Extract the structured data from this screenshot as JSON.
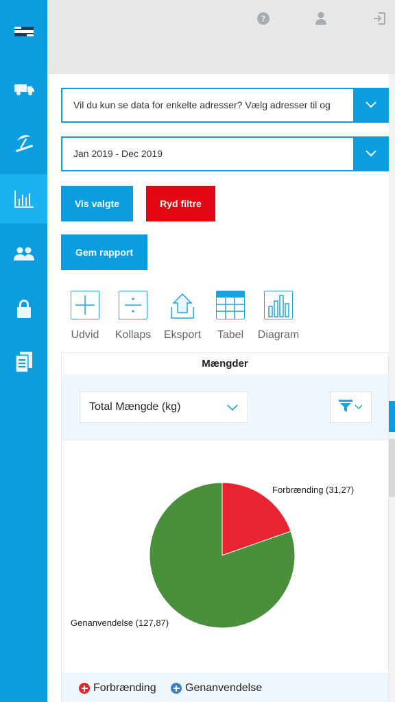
{
  "colors": {
    "sidebar": "#0a9ee0",
    "sidebar_active": "#1cb1f0",
    "primary": "#0a9ee0",
    "danger": "#e30613",
    "pie_forbraending": "#ea2330",
    "pie_genanvendelse": "#4a8f3c",
    "legend_forbraending": "#e1262e",
    "legend_genanvendelse": "#3b7fc4"
  },
  "sidebar": {
    "items": [
      {
        "icon": "flag-logo-icon"
      },
      {
        "icon": "truck-icon"
      },
      {
        "icon": "beach-umbrella-icon"
      },
      {
        "icon": "bar-chart-icon",
        "active": true
      },
      {
        "icon": "users-icon"
      },
      {
        "icon": "lock-icon"
      },
      {
        "icon": "documents-icon"
      }
    ]
  },
  "topbar": {
    "icons": [
      "help-icon",
      "user-icon",
      "logout-icon"
    ]
  },
  "filters": {
    "address_placeholder": "Vil du kun se data for enkelte adresser? Vælg adresser til og",
    "date_range": "Jan 2019 - Dec 2019"
  },
  "buttons": {
    "show_selected": "Vis valgte",
    "clear_filters": "Ryd filtre",
    "save_report": "Gem rapport"
  },
  "toolbar": {
    "expand": "Udvid",
    "collapse": "Kollaps",
    "export": "Eksport",
    "table": "Tabel",
    "chart": "Diagram"
  },
  "card": {
    "title": "Mængder",
    "measure": "Total Mængde (kg)"
  },
  "chart_data": {
    "type": "pie",
    "title": "",
    "categories": [
      "Forbrænding",
      "Genanvendelse"
    ],
    "values": [
      31.27,
      127.87
    ],
    "labels": [
      "Forbrænding (31,27)",
      "Genanvendelse (127,87)"
    ],
    "legend": [
      "Forbrænding",
      "Genanvendelse"
    ],
    "legend_position": "bottom"
  }
}
